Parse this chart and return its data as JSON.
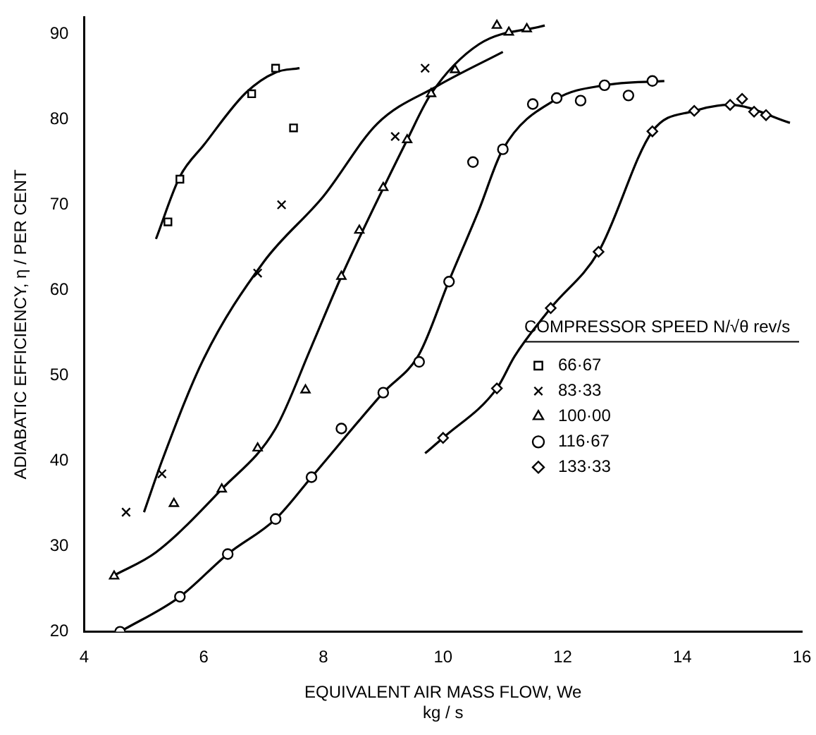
{
  "chart_data": {
    "type": "scatter",
    "xlabel": "EQUIVALENT AIR MASS FLOW, We\nkg / s",
    "ylabel": "ADIABATIC EFFICIENCY, η / PER CENT",
    "legend_title": "COMPRESSOR SPEED N/√θ rev/s",
    "xlim": [
      4,
      16
    ],
    "xticks": [
      4,
      6,
      8,
      10,
      12,
      14,
      16
    ],
    "ylim": [
      20,
      92
    ],
    "yticks": [
      20,
      30,
      40,
      50,
      60,
      70,
      80,
      90
    ],
    "grid": false,
    "legend": "right",
    "series": [
      {
        "name": "66·67",
        "marker": "square",
        "color": "#000000",
        "x": [
          5.4,
          5.6,
          6.8,
          7.2,
          7.5
        ],
        "values": [
          68,
          73,
          83,
          86,
          79
        ]
      },
      {
        "name": "83·33",
        "marker": "cross",
        "color": "#000000",
        "x": [
          4.7,
          5.3,
          6.9,
          7.3,
          9.2,
          9.7
        ],
        "values": [
          34,
          38.5,
          62,
          70,
          78,
          86
        ]
      },
      {
        "name": "100·00",
        "marker": "triangle",
        "color": "#000000",
        "x": [
          4.5,
          5.5,
          6.3,
          6.9,
          7.7,
          8.3,
          8.6,
          9,
          9.4,
          9.8,
          10.2,
          10.9,
          11.1,
          11.4
        ],
        "values": [
          26.5,
          35,
          36.7,
          41.5,
          48.3,
          61.6,
          67,
          72,
          77.6,
          83,
          85.8,
          91,
          90.2,
          90.6
        ]
      },
      {
        "name": "116·67",
        "marker": "circle",
        "color": "#000000",
        "x": [
          4.6,
          5.6,
          6.4,
          7.2,
          7.8,
          8.3,
          9,
          9.6,
          10.1,
          10.5,
          11,
          11.5,
          11.9,
          12.3,
          12.7,
          13.1,
          13.5
        ],
        "values": [
          20,
          24.1,
          29.1,
          33.2,
          38.1,
          43.8,
          48,
          51.6,
          61,
          75,
          76.5,
          81.8,
          82.5,
          82.2,
          84,
          82.8,
          84.5
        ]
      },
      {
        "name": "133·33",
        "marker": "diamond",
        "color": "#000000",
        "x": [
          10,
          10.9,
          11.8,
          12.6,
          13.5,
          14.2,
          14.8,
          15,
          15.2,
          15.4
        ],
        "values": [
          42.7,
          48.5,
          57.9,
          64.5,
          78.6,
          81,
          81.7,
          82.4,
          80.9,
          80.5
        ]
      },
      {
        "type": "line",
        "marker": "none",
        "color": "#000000",
        "x": [
          5.2,
          5.6,
          6,
          6.7,
          7.2,
          7.6
        ],
        "values": [
          66,
          73.3,
          77,
          83.1,
          85.5,
          86
        ]
      },
      {
        "type": "line",
        "marker": "none",
        "color": "#000000",
        "x": [
          5,
          5.3,
          6,
          7,
          8,
          8.9,
          9.9,
          11
        ],
        "values": [
          34,
          40,
          52,
          63.3,
          71,
          79.5,
          83.9,
          87.9
        ]
      },
      {
        "type": "line",
        "marker": "none",
        "color": "#000000",
        "x": [
          4.5,
          5.2,
          6.3,
          7.2,
          7.8,
          8.3,
          9.4,
          9.8,
          10.6,
          11.7
        ],
        "values": [
          26.6,
          29.3,
          36.7,
          43.8,
          53.4,
          61.6,
          77.6,
          83,
          88.8,
          91
        ]
      },
      {
        "type": "line",
        "marker": "none",
        "color": "#000000",
        "x": [
          4.6,
          5.6,
          6.4,
          7.2,
          7.8,
          9,
          9.6,
          10.1,
          10.6,
          11,
          11.9,
          12.7,
          13.7
        ],
        "values": [
          20,
          24.1,
          29.1,
          33.2,
          38.1,
          48,
          52.5,
          61.1,
          69.4,
          76.5,
          82.4,
          84,
          84.5
        ]
      },
      {
        "type": "line",
        "marker": "none",
        "color": "#000000",
        "x": [
          9.7,
          10,
          10.9,
          11.2,
          11.8,
          12.6,
          13.5,
          14.2,
          14.8,
          15.8
        ],
        "values": [
          40.9,
          42.7,
          48.5,
          52.3,
          57.9,
          64.5,
          78.6,
          81,
          81.7,
          79.6
        ]
      }
    ]
  }
}
